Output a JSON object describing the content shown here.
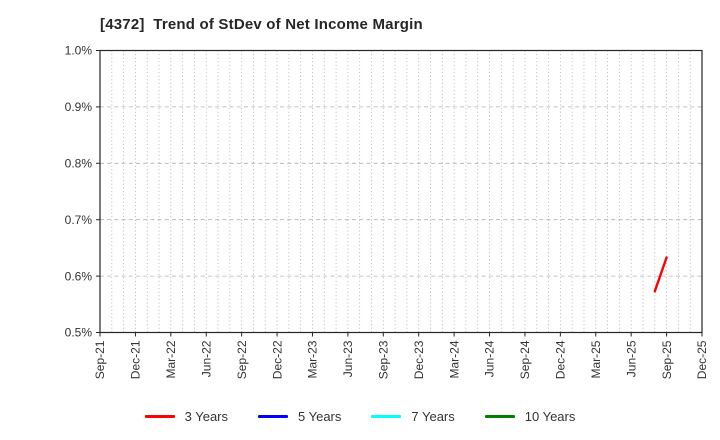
{
  "header": {
    "title": "[4372]  Trend of StDev of Net Income Margin"
  },
  "chart_data": {
    "type": "line",
    "title": "[4372]  Trend of StDev of Net Income Margin",
    "xlabel": "",
    "ylabel": "",
    "ylim": [
      0.5,
      1.0
    ],
    "y_ticks": [
      0.5,
      0.6,
      0.7,
      0.8,
      0.9,
      1.0
    ],
    "y_tick_labels": [
      "0.5%",
      "0.6%",
      "0.7%",
      "0.8%",
      "0.9%",
      "1.0%"
    ],
    "x_tick_labels": [
      "Sep-21",
      "Dec-21",
      "Mar-22",
      "Jun-22",
      "Sep-22",
      "Dec-22",
      "Mar-23",
      "Jun-23",
      "Sep-23",
      "Dec-23",
      "Mar-24",
      "Jun-24",
      "Sep-24",
      "Dec-24",
      "Mar-25",
      "Jun-25",
      "Sep-25",
      "Dec-25"
    ],
    "x_minor_gridlines": "monthly",
    "grid": true,
    "legend_position": "bottom-center",
    "series": [
      {
        "name": "3 Years",
        "color": "#ff0000",
        "points": [
          {
            "x": "Aug-25",
            "y": 0.573
          },
          {
            "x": "Sep-25",
            "y": 0.633
          }
        ]
      },
      {
        "name": "5 Years",
        "color": "#0000ff",
        "points": []
      },
      {
        "name": "7 Years",
        "color": "#00ffff",
        "points": []
      },
      {
        "name": "10 Years",
        "color": "#008000",
        "points": []
      }
    ]
  }
}
